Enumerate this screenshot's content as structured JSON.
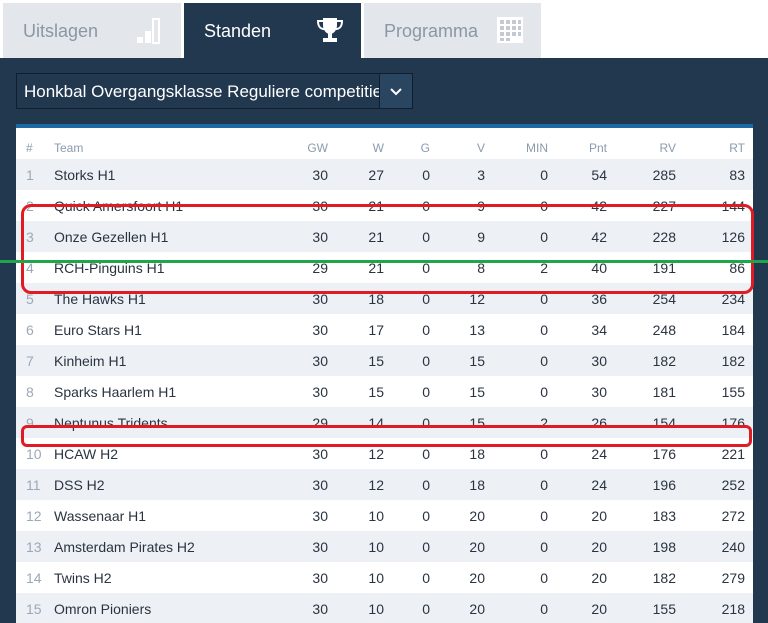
{
  "tabs": [
    {
      "label": "Uitslagen",
      "icon": "bar-chart-icon",
      "active": false
    },
    {
      "label": "Standen",
      "icon": "trophy-icon",
      "active": true
    },
    {
      "label": "Programma",
      "icon": "calendar-grid-icon",
      "active": false
    }
  ],
  "competition_select": {
    "value": "Honkbal Overgangsklasse Reguliere competitie",
    "icon": "chevron-down-icon"
  },
  "table": {
    "headers": [
      "#",
      "Team",
      "GW",
      "W",
      "G",
      "V",
      "MIN",
      "Pnt",
      "RV",
      "RT"
    ],
    "rows": [
      {
        "pos": "1",
        "team": "Storks H1",
        "gw": "30",
        "w": "27",
        "g": "0",
        "v": "3",
        "min": "0",
        "pnt": "54",
        "rv": "285",
        "rt": "83"
      },
      {
        "pos": "2",
        "team": "Quick Amersfoort H1",
        "gw": "30",
        "w": "21",
        "g": "0",
        "v": "9",
        "min": "0",
        "pnt": "42",
        "rv": "227",
        "rt": "144"
      },
      {
        "pos": "3",
        "team": "Onze Gezellen H1",
        "gw": "30",
        "w": "21",
        "g": "0",
        "v": "9",
        "min": "0",
        "pnt": "42",
        "rv": "228",
        "rt": "126"
      },
      {
        "pos": "4",
        "team": "RCH-Pinguins H1",
        "gw": "29",
        "w": "21",
        "g": "0",
        "v": "8",
        "min": "2",
        "pnt": "40",
        "rv": "191",
        "rt": "86"
      },
      {
        "pos": "5",
        "team": "The Hawks H1",
        "gw": "30",
        "w": "18",
        "g": "0",
        "v": "12",
        "min": "0",
        "pnt": "36",
        "rv": "254",
        "rt": "234"
      },
      {
        "pos": "6",
        "team": "Euro Stars H1",
        "gw": "30",
        "w": "17",
        "g": "0",
        "v": "13",
        "min": "0",
        "pnt": "34",
        "rv": "248",
        "rt": "184"
      },
      {
        "pos": "7",
        "team": "Kinheim H1",
        "gw": "30",
        "w": "15",
        "g": "0",
        "v": "15",
        "min": "0",
        "pnt": "30",
        "rv": "182",
        "rt": "182"
      },
      {
        "pos": "8",
        "team": "Sparks Haarlem H1",
        "gw": "30",
        "w": "15",
        "g": "0",
        "v": "15",
        "min": "0",
        "pnt": "30",
        "rv": "181",
        "rt": "155"
      },
      {
        "pos": "9",
        "team": "Neptunus Tridents",
        "gw": "29",
        "w": "14",
        "g": "0",
        "v": "15",
        "min": "2",
        "pnt": "26",
        "rv": "154",
        "rt": "176"
      },
      {
        "pos": "10",
        "team": "HCAW H2",
        "gw": "30",
        "w": "12",
        "g": "0",
        "v": "18",
        "min": "0",
        "pnt": "24",
        "rv": "176",
        "rt": "221"
      },
      {
        "pos": "11",
        "team": "DSS H2",
        "gw": "30",
        "w": "12",
        "g": "0",
        "v": "18",
        "min": "0",
        "pnt": "24",
        "rv": "196",
        "rt": "252"
      },
      {
        "pos": "12",
        "team": "Wassenaar H1",
        "gw": "30",
        "w": "10",
        "g": "0",
        "v": "20",
        "min": "0",
        "pnt": "20",
        "rv": "183",
        "rt": "272"
      },
      {
        "pos": "13",
        "team": "Amsterdam Pirates H2",
        "gw": "30",
        "w": "10",
        "g": "0",
        "v": "20",
        "min": "0",
        "pnt": "20",
        "rv": "198",
        "rt": "240"
      },
      {
        "pos": "14",
        "team": "Twins H2",
        "gw": "30",
        "w": "10",
        "g": "0",
        "v": "20",
        "min": "0",
        "pnt": "20",
        "rv": "182",
        "rt": "279"
      },
      {
        "pos": "15",
        "team": "Omron Pioniers",
        "gw": "30",
        "w": "10",
        "g": "0",
        "v": "20",
        "min": "0",
        "pnt": "20",
        "rv": "155",
        "rt": "218"
      }
    ]
  },
  "colors": {
    "panel": "#22384f",
    "accent": "#1b6aa5",
    "annotation_red": "#e01b24",
    "annotation_green": "#1fa64a"
  }
}
